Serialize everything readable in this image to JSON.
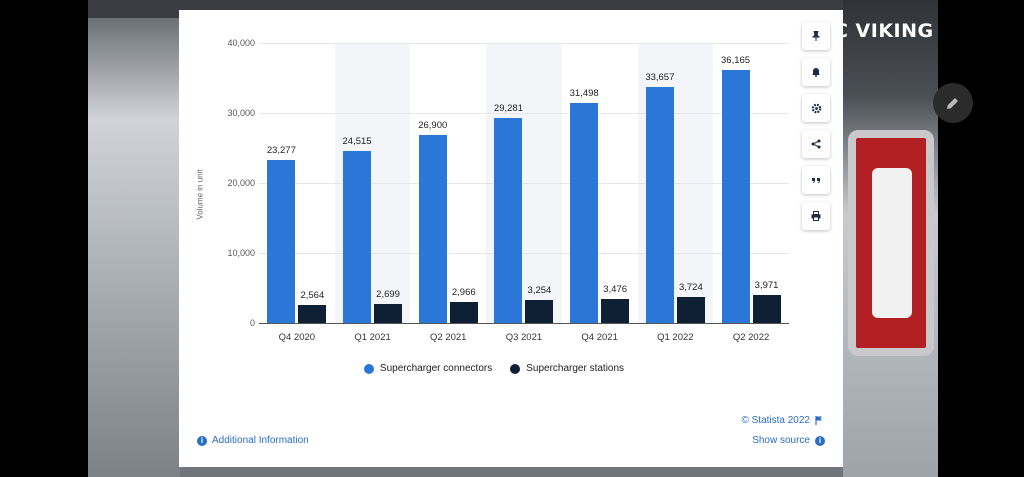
{
  "overlay": {
    "brand_text": "C VIKING",
    "edit_icon": "pencil-icon"
  },
  "card": {
    "toolbar_icons": [
      "pin-icon",
      "bell-icon",
      "gear-icon",
      "share-icon",
      "quote-icon",
      "print-icon"
    ],
    "copyright": "© Statista 2022",
    "show_source": "Show source",
    "additional_info": "Additional Information"
  },
  "colors": {
    "connectors": "#2a77d8",
    "stations": "#0f2035",
    "link": "#2a6dc4"
  },
  "chart_data": {
    "type": "bar",
    "ylabel": "Volume in unit",
    "xlabel": "",
    "ylim": [
      0,
      40000
    ],
    "yticks": [
      "0",
      "10,000",
      "20,000",
      "30,000",
      "40,000"
    ],
    "categories": [
      "Q4 2020",
      "Q1 2021",
      "Q2 2021",
      "Q3 2021",
      "Q4 2021",
      "Q1 2022",
      "Q2 2022"
    ],
    "series": [
      {
        "name": "Supercharger connectors",
        "values": [
          23277,
          24515,
          26900,
          29281,
          31498,
          33657,
          36165
        ],
        "labels": [
          "23,277",
          "24,515",
          "26,900",
          "29,281",
          "31,498",
          "33,657",
          "36,165"
        ]
      },
      {
        "name": "Supercharger stations",
        "values": [
          2564,
          2699,
          2966,
          3254,
          3476,
          3724,
          3971
        ],
        "labels": [
          "2,564",
          "2,699",
          "2,966",
          "3,254",
          "3,476",
          "3,724",
          "3,971"
        ]
      }
    ],
    "legend_position": "bottom",
    "grid": true
  }
}
